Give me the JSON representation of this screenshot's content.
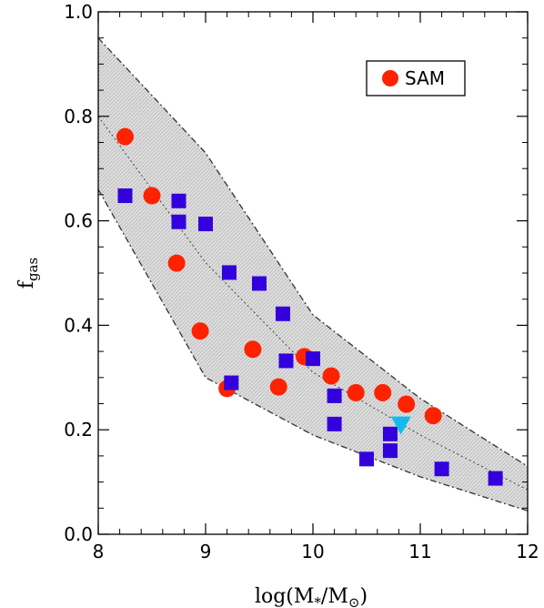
{
  "chart_data": {
    "type": "scatter",
    "xlim": [
      8,
      12
    ],
    "ylim": [
      0.0,
      1.0
    ],
    "x_ticks": [
      "8",
      "9",
      "10",
      "11",
      "12"
    ],
    "y_ticks": [
      "0.0",
      "0.2",
      "0.4",
      "0.6",
      "0.8",
      "1.0"
    ],
    "xlabel": {
      "main": "log(M",
      "sub1": "*",
      "mid": "/M",
      "sub2": "⊙",
      "end": ")"
    },
    "ylabel": {
      "main": "f",
      "sub": "gas"
    },
    "legend": {
      "label": "SAM",
      "placement": "top-right"
    },
    "band": {
      "upper": [
        [
          8.0,
          0.95
        ],
        [
          9.0,
          0.73
        ],
        [
          10.0,
          0.42
        ],
        [
          11.0,
          0.26
        ],
        [
          12.0,
          0.13
        ]
      ],
      "lower": [
        [
          8.0,
          0.66
        ],
        [
          9.0,
          0.3
        ],
        [
          10.0,
          0.19
        ],
        [
          11.0,
          0.11
        ],
        [
          12.0,
          0.045
        ]
      ],
      "mid": [
        [
          8.0,
          0.8
        ],
        [
          9.0,
          0.52
        ],
        [
          10.0,
          0.31
        ],
        [
          11.0,
          0.19
        ],
        [
          12.0,
          0.085
        ]
      ],
      "fill": "#d4d4d4",
      "edge": "#333333"
    },
    "series": [
      {
        "name": "SAM",
        "marker": "circle",
        "color": "#ff2200",
        "points": [
          [
            8.25,
            0.761
          ],
          [
            8.5,
            0.648
          ],
          [
            8.73,
            0.519
          ],
          [
            8.95,
            0.389
          ],
          [
            9.2,
            0.279
          ],
          [
            9.44,
            0.354
          ],
          [
            9.68,
            0.282
          ],
          [
            9.92,
            0.34
          ],
          [
            10.17,
            0.303
          ],
          [
            10.4,
            0.271
          ],
          [
            10.65,
            0.271
          ],
          [
            10.87,
            0.249
          ],
          [
            11.12,
            0.227
          ]
        ]
      },
      {
        "marker": "square",
        "color": "#3300dd",
        "points": [
          [
            8.25,
            0.648
          ],
          [
            8.75,
            0.638
          ],
          [
            8.75,
            0.598
          ],
          [
            9.0,
            0.594
          ],
          [
            9.22,
            0.501
          ],
          [
            9.5,
            0.48
          ],
          [
            9.72,
            0.422
          ],
          [
            9.75,
            0.332
          ],
          [
            10.0,
            0.336
          ],
          [
            10.2,
            0.265
          ],
          [
            10.2,
            0.211
          ],
          [
            9.24,
            0.29
          ],
          [
            10.5,
            0.144
          ],
          [
            10.72,
            0.192
          ],
          [
            10.72,
            0.16
          ],
          [
            11.2,
            0.125
          ],
          [
            11.7,
            0.107
          ]
        ]
      },
      {
        "marker": "triangle-down",
        "color": "#11bbee",
        "points": [
          [
            10.82,
            0.208
          ]
        ]
      }
    ]
  }
}
